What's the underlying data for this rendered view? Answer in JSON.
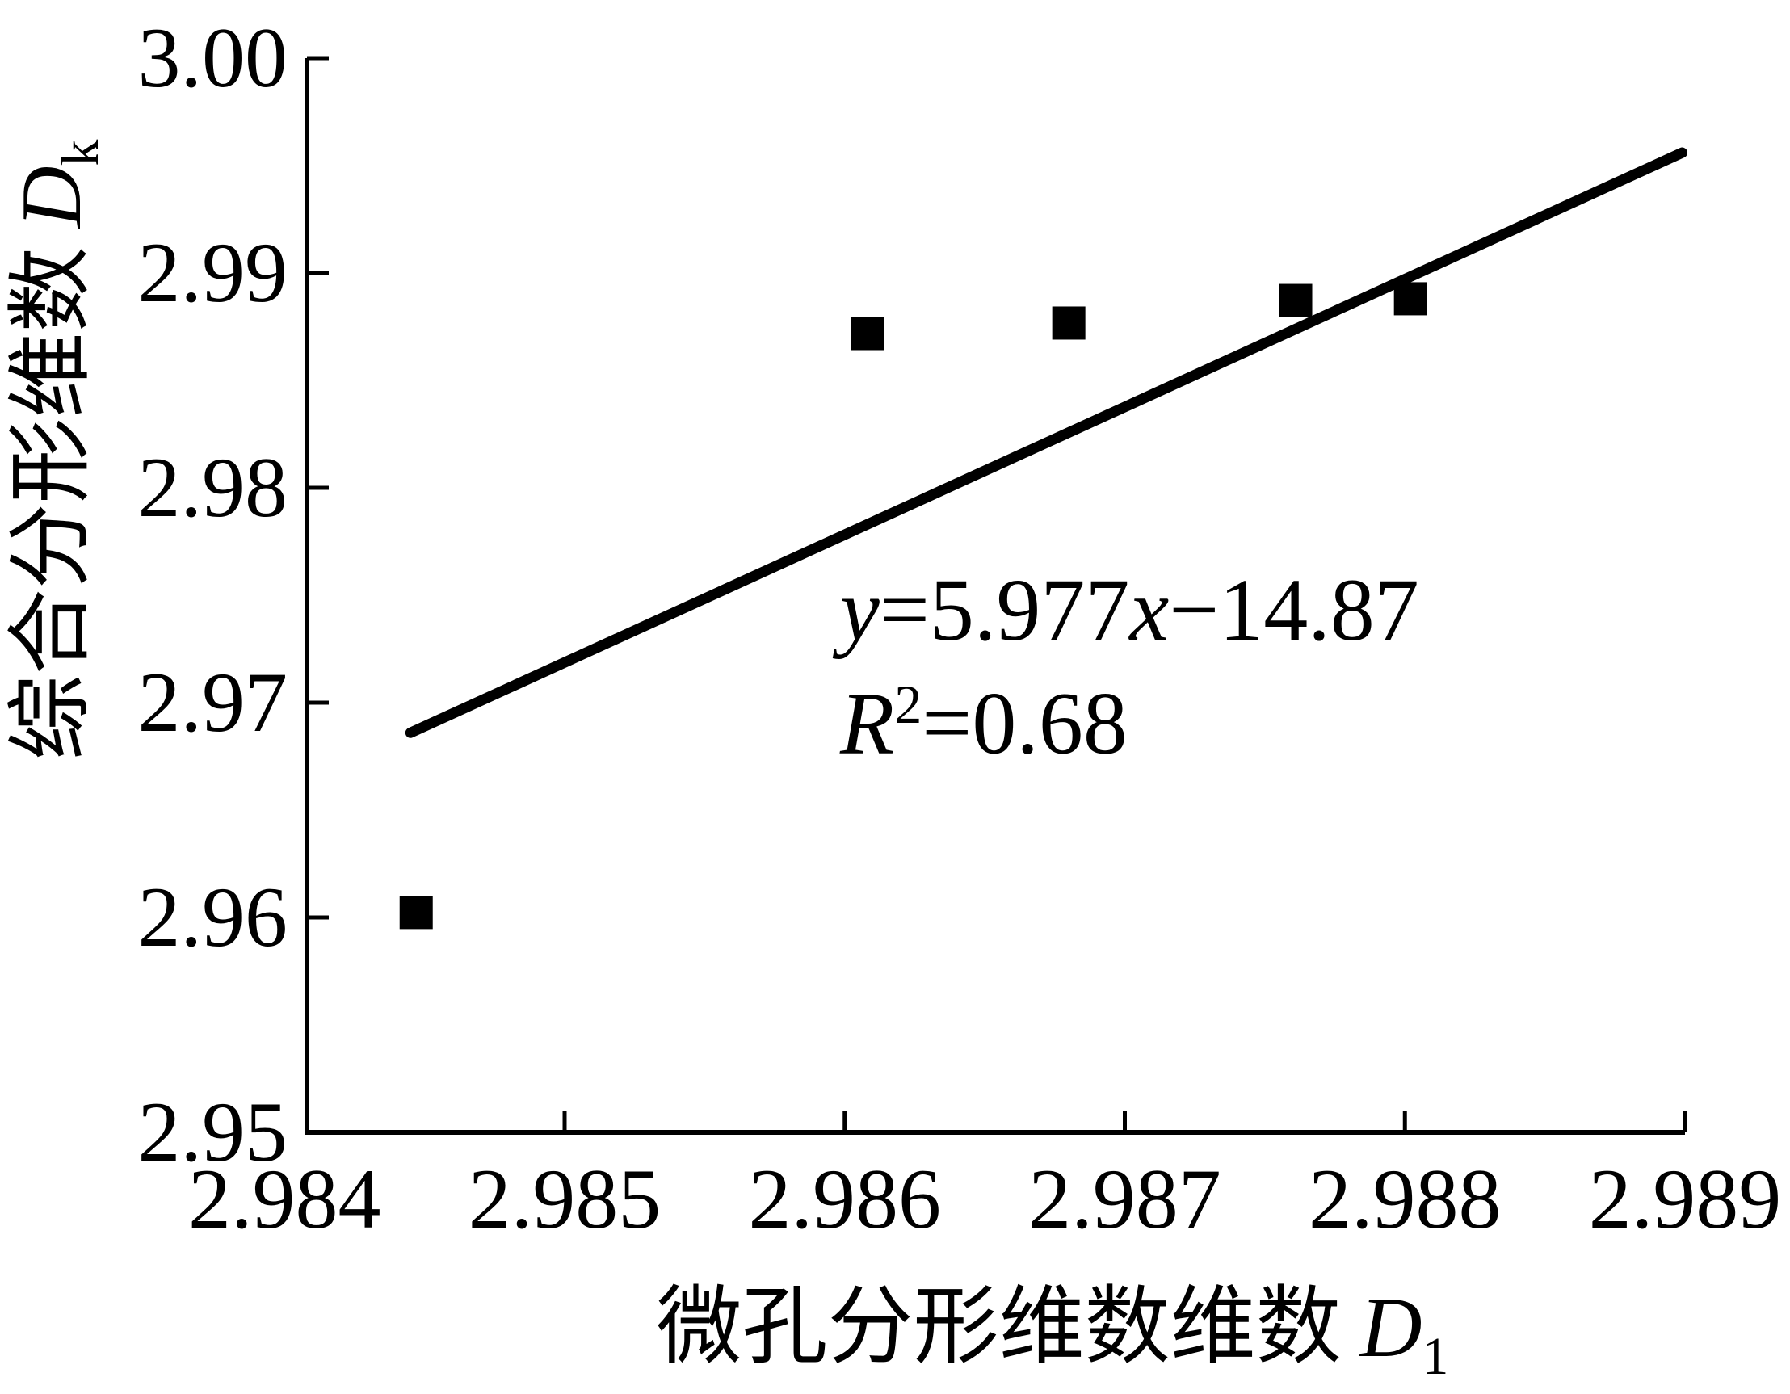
{
  "figure": {
    "background": "#ffffff",
    "ink_color": "#000000"
  },
  "chart_data": {
    "type": "scatter",
    "title": "",
    "grid": false,
    "legend": null,
    "marker": "filled-square",
    "x_axis": {
      "title_cn": "微孔分形维数维数",
      "title_var": "D",
      "title_sub": "1",
      "range": [
        2.98408,
        2.989
      ],
      "tick_values": [
        2.984,
        2.985,
        2.986,
        2.987,
        2.988,
        2.989
      ],
      "tick_labels": [
        "2.984",
        "2.985",
        "2.986",
        "2.987",
        "2.988",
        "2.989"
      ]
    },
    "y_axis": {
      "title_cn": "综合分形维数",
      "title_var": "D",
      "title_sub": "k",
      "range": [
        2.95,
        3.0
      ],
      "tick_values": [
        3.0,
        2.99,
        2.98,
        2.97,
        2.96,
        2.95
      ],
      "tick_labels": [
        "3.00",
        "2.99",
        "2.98",
        "2.97",
        "2.96",
        "2.95"
      ]
    },
    "points": [
      {
        "x": 2.98447,
        "y": 2.96023
      },
      {
        "x": 2.98608,
        "y": 2.98718
      },
      {
        "x": 2.9868,
        "y": 2.98767
      },
      {
        "x": 2.98761,
        "y": 2.98872
      },
      {
        "x": 2.98802,
        "y": 2.9888
      }
    ],
    "trendline": {
      "slope": 5.977,
      "intercept": -14.87,
      "x1": 2.98445,
      "y1": 2.9686,
      "x2": 2.98899,
      "y2": 2.9956
    },
    "annotation": {
      "line1": {
        "var1": "y",
        "eq1": "=5.977",
        "var2": "x",
        "tail": "−14.87"
      },
      "line2": {
        "var": "R",
        "sup": "2",
        "tail": "=0.68"
      }
    }
  }
}
